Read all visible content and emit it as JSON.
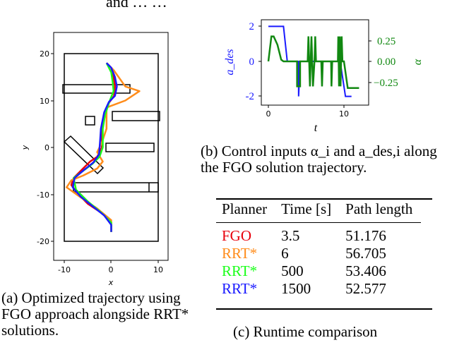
{
  "header_fragment": "and … …",
  "figure_a": {
    "caption": "(a)  Optimized trajectory using  FGO  approach  alongside RRT* solutions.",
    "chart_data": {
      "type": "line",
      "xlabel": "x",
      "ylabel": "y",
      "xlim": [
        -12,
        12
      ],
      "ylim": [
        -22,
        22
      ],
      "xticks": [
        -10,
        0,
        10
      ],
      "yticks": [
        -20,
        -10,
        0,
        10,
        20
      ],
      "boundary": {
        "x": [
          -10,
          10
        ],
        "y": [
          -20,
          20
        ]
      },
      "obstacles_label": "rectangular obstacles",
      "series": [
        {
          "name": "FGO",
          "color": "#e8000b",
          "points": [
            [
              -1,
              18
            ],
            [
              0,
              17
            ],
            [
              0.5,
              15
            ],
            [
              0.8,
              13
            ],
            [
              0.6,
              11
            ],
            [
              -0.5,
              9.5
            ],
            [
              -1.2,
              8
            ],
            [
              -2,
              5
            ],
            [
              -2,
              2
            ],
            [
              -2,
              0
            ],
            [
              -3,
              -2
            ],
            [
              -4.5,
              -3
            ],
            [
              -6,
              -4.5
            ],
            [
              -8,
              -6.5
            ],
            [
              -8.5,
              -8
            ],
            [
              -7,
              -10
            ],
            [
              -5,
              -12
            ],
            [
              -2,
              -14
            ],
            [
              0,
              -16
            ],
            [
              0,
              -18
            ]
          ]
        },
        {
          "name": "RRT*",
          "color": "#ff8c1a",
          "points": [
            [
              -1,
              18
            ],
            [
              0.5,
              16.5
            ],
            [
              3,
              13
            ],
            [
              6,
              12
            ],
            [
              3,
              10
            ],
            [
              -1,
              8.5
            ],
            [
              -1,
              4
            ],
            [
              -2,
              1
            ],
            [
              -3,
              -1
            ],
            [
              -1.8,
              -3
            ],
            [
              -3,
              -4.5
            ],
            [
              -6,
              -6
            ],
            [
              -8.5,
              -7
            ],
            [
              -9.5,
              -8.5
            ],
            [
              -6,
              -11
            ],
            [
              -3,
              -13
            ],
            [
              0,
              -15.5
            ],
            [
              0,
              -18
            ]
          ]
        },
        {
          "name": "RRT*",
          "color": "#1aff1a",
          "points": [
            [
              -1,
              18
            ],
            [
              0,
              16
            ],
            [
              0.3,
              14
            ],
            [
              0.5,
              12
            ],
            [
              -0.3,
              10
            ],
            [
              -1.3,
              7
            ],
            [
              -1.8,
              4
            ],
            [
              -1.8,
              0
            ],
            [
              -2.5,
              -2
            ],
            [
              -4,
              -3.5
            ],
            [
              -6,
              -5
            ],
            [
              -8,
              -6.5
            ],
            [
              -7.5,
              -9
            ],
            [
              -5,
              -11.5
            ],
            [
              -2,
              -14
            ],
            [
              0,
              -16
            ],
            [
              0,
              -18
            ]
          ]
        },
        {
          "name": "RRT*",
          "color": "#1a1aff",
          "points": [
            [
              -1,
              18
            ],
            [
              0,
              17
            ],
            [
              0.8,
              15
            ],
            [
              1.2,
              13
            ],
            [
              0.8,
              11
            ],
            [
              -0.5,
              9.7
            ],
            [
              -1.5,
              7.5
            ],
            [
              -2.2,
              4
            ],
            [
              -2.4,
              1
            ],
            [
              -2.6,
              -1.5
            ],
            [
              -3.8,
              -3.2
            ],
            [
              -5.8,
              -4.8
            ],
            [
              -7.8,
              -6.5
            ],
            [
              -8.2,
              -8.5
            ],
            [
              -6.5,
              -10.5
            ],
            [
              -4,
              -12.5
            ],
            [
              -1.5,
              -14.5
            ],
            [
              0,
              -16.5
            ],
            [
              0,
              -18
            ]
          ]
        }
      ]
    }
  },
  "figure_b": {
    "caption": "(b) Control inputs α_i and a_des,i along the FGO solution trajectory.",
    "chart_data": {
      "type": "line",
      "xlabel": "t",
      "ylabel_left": "a_des",
      "ylabel_right": "α",
      "xlim": [
        -1,
        13
      ],
      "ylim_left": [
        -2.2,
        2.2
      ],
      "ylim_right": [
        -0.35,
        0.35
      ],
      "xticks": [
        0,
        10
      ],
      "yticks_left": [
        -2,
        0,
        2
      ],
      "yticks_right": [
        -0.25,
        0.0,
        0.25
      ],
      "ytick_labels_right": [
        "−0.25",
        "0.00",
        "0.25"
      ],
      "series": [
        {
          "name": "a_des",
          "axis": "left",
          "color": "#1a1aff",
          "points": [
            [
              0,
              2
            ],
            [
              2,
              2
            ],
            [
              2.5,
              0
            ],
            [
              4,
              0
            ],
            [
              4,
              -2
            ],
            [
              4.2,
              0
            ],
            [
              9.5,
              0
            ],
            [
              10.2,
              -2
            ],
            [
              11,
              -2
            ]
          ]
        },
        {
          "name": "α",
          "axis": "right",
          "color": "#118811",
          "points": [
            [
              0,
              0
            ],
            [
              0.4,
              0.3
            ],
            [
              0.7,
              0.3
            ],
            [
              1.2,
              0.2
            ],
            [
              1.7,
              0.02
            ],
            [
              2,
              0
            ],
            [
              3.8,
              0
            ],
            [
              3.8,
              -0.3
            ],
            [
              4.2,
              -0.3
            ],
            [
              4.2,
              0
            ],
            [
              5.2,
              0
            ],
            [
              5.3,
              0.3
            ],
            [
              5.5,
              -0.3
            ],
            [
              5.7,
              0.3
            ],
            [
              5.9,
              -0.3
            ],
            [
              6.1,
              0
            ],
            [
              6.2,
              0.3
            ],
            [
              6.3,
              0
            ],
            [
              7,
              0
            ],
            [
              7.1,
              -0.3
            ],
            [
              7.2,
              0
            ],
            [
              8.3,
              0
            ],
            [
              8.35,
              -0.3
            ],
            [
              8.45,
              0
            ],
            [
              9.2,
              0
            ],
            [
              9.25,
              0.3
            ],
            [
              9.35,
              -0.3
            ],
            [
              9.45,
              0.3
            ],
            [
              9.55,
              -0.3
            ],
            [
              9.7,
              0.3
            ],
            [
              9.8,
              0
            ],
            [
              10,
              0
            ],
            [
              10.5,
              -0.32
            ],
            [
              12,
              -0.32
            ]
          ]
        }
      ]
    }
  },
  "figure_c": {
    "caption": "(c)  Runtime comparison",
    "table": {
      "headers": [
        "Planner",
        "Time [s]",
        "Path length"
      ],
      "rows": [
        {
          "planner": "FGO",
          "color": "#e8000b",
          "time": "3.5",
          "length": "51.176"
        },
        {
          "planner": "RRT*",
          "color": "#ff8c1a",
          "time": "6",
          "length": "56.705"
        },
        {
          "planner": "RRT*",
          "color": "#1aff1a",
          "time": "500",
          "length": "53.406"
        },
        {
          "planner": "RRT*",
          "color": "#1a1aff",
          "time": "1500",
          "length": "52.577"
        }
      ]
    }
  }
}
